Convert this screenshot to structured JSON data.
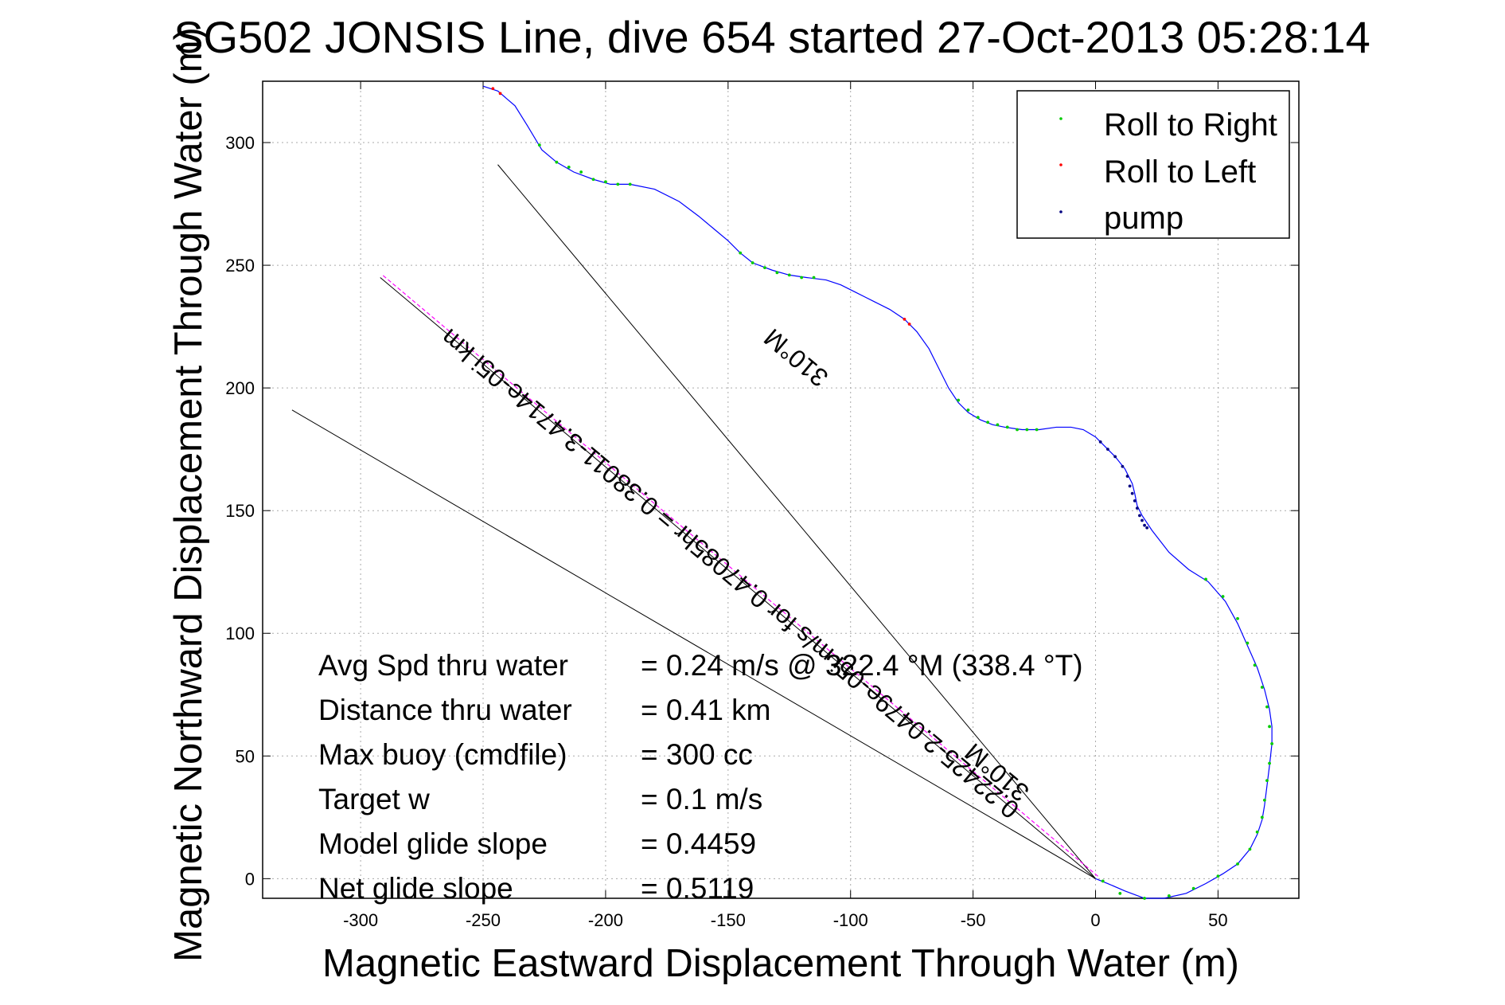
{
  "chart_data": {
    "type": "line",
    "title": "SG502 JONSIS Line, dive 654 started 27-Oct-2013 05:28:14",
    "xlabel": "Magnetic Eastward Displacement Through Water (m)",
    "ylabel": "Magnetic Northward Displacement Through Water (m)",
    "xlim": [
      -340,
      83
    ],
    "ylim": [
      -8,
      325
    ],
    "xticks": [
      -300,
      -250,
      -200,
      -150,
      -100,
      -50,
      0,
      50
    ],
    "yticks": [
      0,
      50,
      100,
      150,
      200,
      250,
      300
    ],
    "grid": true,
    "legend_position": "top-right",
    "legend": [
      {
        "label": "Roll to Right",
        "color": "#00cc00"
      },
      {
        "label": "Roll to Left",
        "color": "#ff0000"
      },
      {
        "label": "pump",
        "color": "#000080"
      }
    ],
    "track_color": "#0000ff",
    "track": {
      "x": [
        -250,
        -244,
        -237,
        -232,
        -226,
        -220,
        -213,
        -205,
        -198,
        -190,
        -180,
        -170,
        -162,
        -156,
        -150,
        -145,
        -140,
        -132,
        -125,
        -118,
        -110,
        -104,
        -98,
        -94,
        -90,
        -84,
        -78,
        -73,
        -68,
        -64,
        -60,
        -56,
        -52,
        -47,
        -42,
        -37,
        -30,
        -23,
        -16,
        -10,
        -5,
        0,
        4,
        8,
        12,
        15,
        16,
        17,
        19,
        23,
        30,
        38,
        46,
        53,
        58,
        62,
        66,
        69,
        71,
        72,
        72,
        71,
        70,
        69,
        68,
        66,
        63,
        58,
        52,
        45,
        37,
        28,
        20,
        12,
        5,
        0
      ],
      "y": [
        323,
        321,
        315,
        307,
        297,
        292,
        288,
        285,
        283,
        283,
        281,
        276,
        270,
        265,
        260,
        255,
        251,
        248,
        246,
        245,
        244,
        242,
        239,
        237,
        235,
        232,
        228,
        223,
        216,
        208,
        200,
        194,
        190,
        187,
        185,
        184,
        183,
        183,
        184,
        184,
        183,
        180,
        176,
        172,
        167,
        161,
        157,
        152,
        148,
        142,
        133,
        126,
        121,
        113,
        104,
        95,
        86,
        77,
        69,
        62,
        55,
        46,
        38,
        30,
        24,
        18,
        12,
        6,
        2,
        -2,
        -6,
        -8,
        -8,
        -5,
        -2,
        0
      ]
    },
    "roll_right_points": {
      "x": [
        -227,
        -220,
        -215,
        -210,
        -205,
        -200,
        -195,
        -190,
        -145,
        -140,
        -135,
        -130,
        -125,
        -120,
        -115,
        -56,
        -52,
        -48,
        -44,
        -40,
        -36,
        -32,
        -28,
        -24,
        45,
        52,
        58,
        62,
        65,
        68,
        70,
        71,
        72,
        71,
        70,
        69,
        68,
        66,
        63,
        58,
        50,
        40,
        30,
        20,
        10,
        3
      ],
      "y": [
        299,
        292,
        290,
        288,
        285,
        284,
        283,
        283,
        255,
        251,
        249,
        247,
        246,
        245,
        245,
        195,
        191,
        188,
        186,
        185,
        184,
        183,
        183,
        183,
        122,
        115,
        106,
        96,
        87,
        78,
        70,
        62,
        55,
        47,
        40,
        32,
        25,
        19,
        12,
        6,
        1,
        -4,
        -7,
        -8,
        -6,
        -1
      ]
    },
    "roll_left_points": {
      "x": [
        -246,
        -243,
        -78,
        -76
      ],
      "y": [
        322,
        320,
        228,
        226
      ]
    },
    "pump_points": {
      "x": [
        2,
        5,
        8,
        11,
        13,
        14,
        15,
        16,
        17,
        18,
        19,
        20,
        21
      ],
      "y": [
        178,
        175,
        172,
        168,
        164,
        160,
        157,
        154,
        151,
        148,
        146,
        144,
        143
      ]
    },
    "reference_lines": [
      {
        "x": [
          0,
          -328
        ],
        "y": [
          0,
          191
        ]
      },
      {
        "x": [
          0,
          -244
        ],
        "y": [
          0,
          291
        ]
      },
      {
        "x": [
          0,
          -292
        ],
        "y": [
          0,
          245
        ]
      }
    ],
    "reference_line_color": "#000000",
    "heading_line_color": "#ff00ff",
    "rotated_labels": [
      {
        "text": "310°M",
        "x": -120,
        "y": 215,
        "angle": 40
      },
      {
        "text": "0.22425-2.0479e-05i m/s for 0.47085hr = 0.38011-3.4714e-05i km",
        "x": -147,
        "y": 127,
        "angle": 40
      },
      {
        "text": "310°M",
        "x": -38,
        "y": 46,
        "angle": 40
      }
    ],
    "annotations": [
      {
        "label": "Avg Spd thru water",
        "value": "=  0.24 m/s @ 322.4 °M (338.4 °T)"
      },
      {
        "label": "Distance thru water",
        "value": "=  0.41 km"
      },
      {
        "label": "Max buoy (cmdfile)",
        "value": "= 300 cc"
      },
      {
        "label": "Target w",
        "value": "= 0.1 m/s"
      },
      {
        "label": "Model glide slope",
        "value": "= 0.4459"
      },
      {
        "label": "Net glide slope",
        "value": "= 0.5119"
      }
    ]
  }
}
